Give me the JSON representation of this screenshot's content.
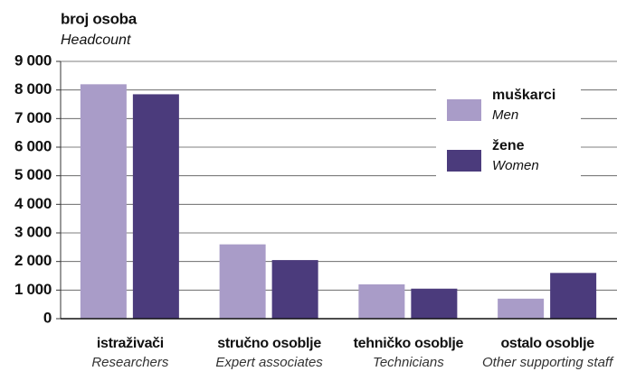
{
  "chart_data": {
    "type": "bar",
    "title": "broj osoba",
    "subtitle": "Headcount",
    "categories": [
      "istraživači",
      "stručno osoblje",
      "tehničko osoblje",
      "ostalo osoblje"
    ],
    "categories_en": [
      "Researchers",
      "Expert associates",
      "Technicians",
      "Other supporting staff"
    ],
    "series": [
      {
        "name": "muškarci",
        "name_en": "Men",
        "color": "#a99cc8",
        "values": [
          8200,
          2600,
          1200,
          700
        ]
      },
      {
        "name": "žene",
        "name_en": "Women",
        "color": "#4b3b7c",
        "values": [
          7850,
          2050,
          1050,
          1600
        ]
      }
    ],
    "ylim": [
      0,
      9000
    ],
    "yticks": [
      0,
      {
        "value": 1000,
        "label": "1 000"
      },
      {
        "value": 2000,
        "label": "2 000"
      },
      {
        "value": 3000,
        "label": "3 000"
      },
      {
        "value": 4000,
        "label": "4 000"
      },
      {
        "value": 5000,
        "label": "5 000"
      },
      {
        "value": 6000,
        "label": "6 000"
      },
      {
        "value": 7000,
        "label": "7 000"
      },
      {
        "value": 8000,
        "label": "8 000"
      },
      {
        "value": 9000,
        "label": "9 000"
      }
    ],
    "grid": true,
    "legend": "top-right"
  }
}
